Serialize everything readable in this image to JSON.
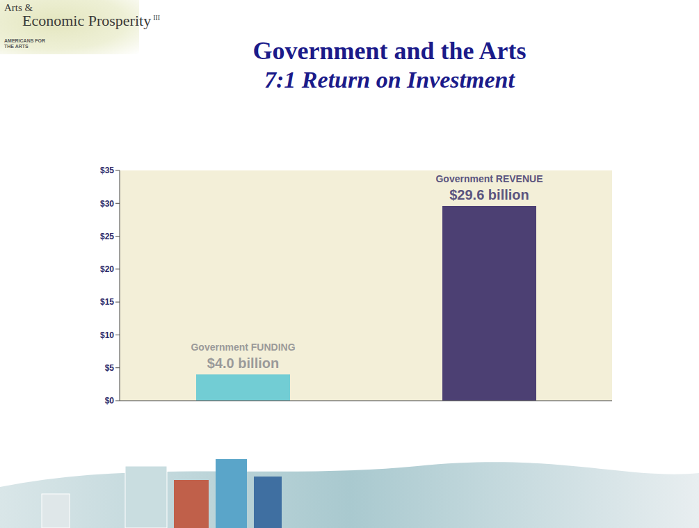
{
  "logo": {
    "name": "Arts & Economic Prosperity",
    "edition": "III",
    "organization": "AMERICANS FOR THE ARTS"
  },
  "chart_data": {
    "type": "bar",
    "title": "Government and the Arts",
    "subtitle": "7:1 Return on Investment",
    "categories": [
      "Government FUNDING",
      "Government REVENUE"
    ],
    "values": [
      4.0,
      29.6
    ],
    "value_labels": [
      "$4.0 billion",
      "$29.6 billion"
    ],
    "data_labels": true,
    "colors": [
      "#72cdd4",
      "#4c4073"
    ],
    "ylim": [
      0,
      35
    ],
    "yticks": [
      {
        "value": 0,
        "label": "$0"
      },
      {
        "value": 5,
        "label": "$5"
      },
      {
        "value": 10,
        "label": "$10"
      },
      {
        "value": 15,
        "label": "$15"
      },
      {
        "value": 20,
        "label": "$20"
      },
      {
        "value": 25,
        "label": "$25"
      },
      {
        "value": 30,
        "label": "$30"
      },
      {
        "value": 35,
        "label": "$35"
      }
    ],
    "grid": false,
    "tick_labels": "y"
  }
}
